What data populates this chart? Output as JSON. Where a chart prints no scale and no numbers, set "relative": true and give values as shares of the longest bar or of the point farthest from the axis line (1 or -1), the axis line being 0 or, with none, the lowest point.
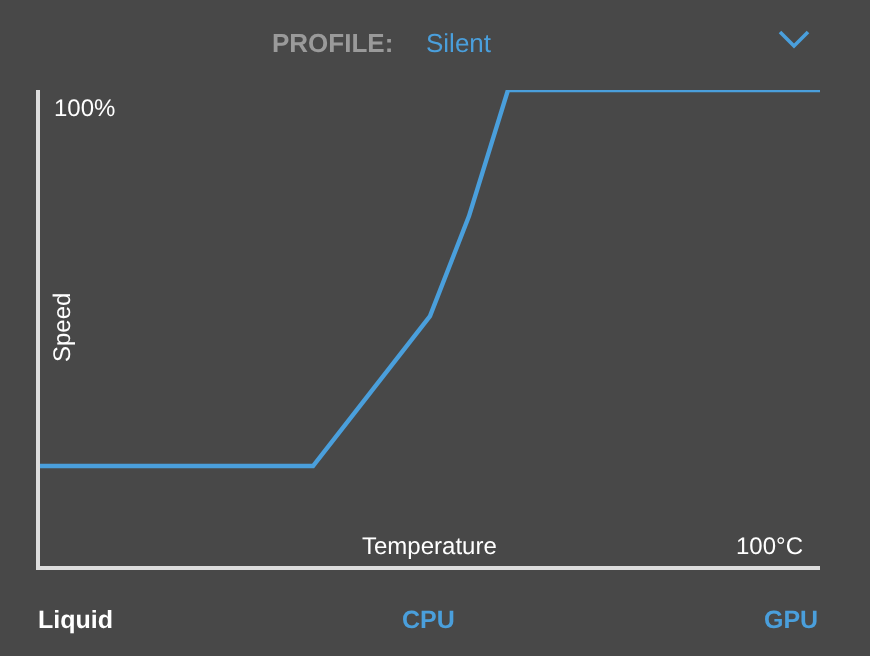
{
  "chart_data": {
    "type": "line",
    "relative": true,
    "xlabel": "Temperature",
    "ylabel": "Speed",
    "categories": [
      null,
      null,
      null,
      null,
      null,
      null,
      null,
      null,
      null,
      null,
      null,
      null,
      null,
      null,
      null,
      null,
      null,
      null,
      null,
      null,
      null
    ],
    "series": [
      {
        "color": "#4a9fdc",
        "values": [
          0.21,
          0.21,
          0.21,
          0.21,
          0.21,
          0.21,
          0.21,
          0.21,
          0.315,
          0.42,
          0.525,
          0.735,
          1,
          1,
          1,
          1,
          1,
          1,
          1,
          1,
          1
        ]
      }
    ],
    "annotations": [
      "100%",
      "100°C",
      "PROFILE:",
      "Silent",
      "Liquid",
      "CPU",
      "GPU"
    ],
    "marker": "none",
    "line_style": "solid"
  }
}
